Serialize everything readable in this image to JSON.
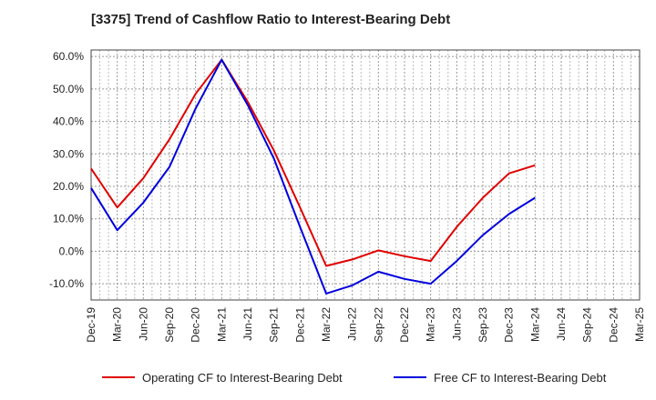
{
  "chart_data": {
    "type": "line",
    "title": "[3375]  Trend of Cashflow Ratio to Interest-Bearing Debt",
    "xlabel": "",
    "ylabel": "",
    "categories": [
      "Dec-19",
      "Mar-20",
      "Jun-20",
      "Sep-20",
      "Dec-20",
      "Mar-21",
      "Jun-21",
      "Sep-21",
      "Dec-21",
      "Mar-22",
      "Jun-22",
      "Sep-22",
      "Dec-22",
      "Mar-23",
      "Jun-23",
      "Sep-23",
      "Dec-23",
      "Mar-24",
      "Jun-24",
      "Sep-24",
      "Dec-24",
      "Mar-25"
    ],
    "y_ticks": [
      "-10.0%",
      "0.0%",
      "10.0%",
      "20.0%",
      "30.0%",
      "40.0%",
      "50.0%",
      "60.0%"
    ],
    "ylim": [
      -15,
      62
    ],
    "grid": true,
    "legend_position": "bottom",
    "series": [
      {
        "name": "Operating CF to Interest-Bearing Debt",
        "color": "#e00000",
        "values": [
          25.5,
          13.5,
          22.5,
          34.5,
          48.5,
          59.0,
          46.0,
          31.0,
          13.5,
          -4.5,
          -2.5,
          0.3,
          -1.5,
          -3.0,
          7.5,
          16.5,
          24.0,
          26.5,
          null,
          null,
          null,
          null
        ]
      },
      {
        "name": "Free CF to Interest-Bearing Debt",
        "color": "#0000dd",
        "values": [
          19.5,
          6.5,
          15.0,
          26.0,
          44.0,
          59.0,
          45.0,
          28.5,
          7.5,
          -13.0,
          -10.5,
          -6.3,
          -8.5,
          -10.0,
          -3.0,
          5.0,
          11.5,
          16.5,
          null,
          null,
          null,
          null
        ]
      }
    ]
  }
}
